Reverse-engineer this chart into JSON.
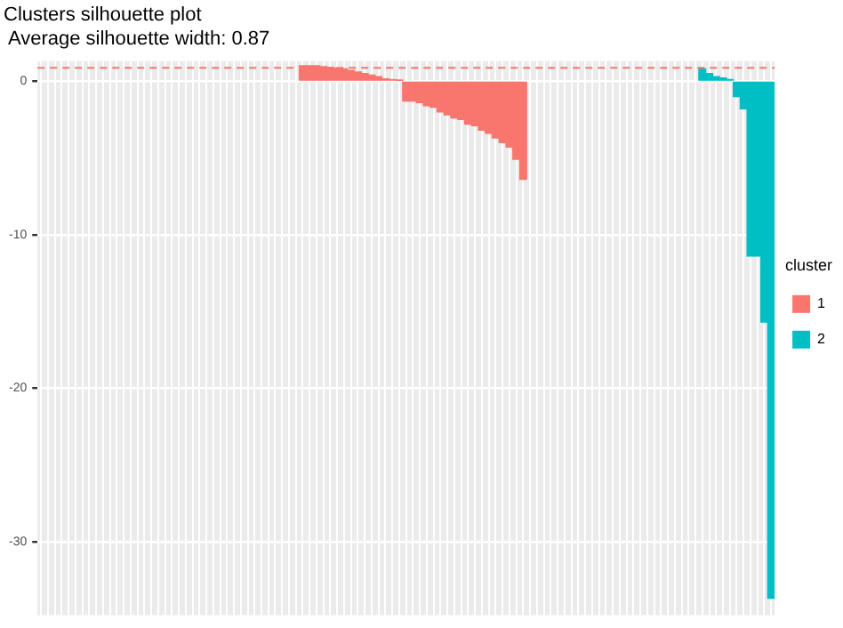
{
  "chart_data": {
    "type": "bar",
    "title": "Clusters silhouette plot",
    "subtitle": " Average silhouette width: 0.87",
    "legend_title": "cluster",
    "categories": [
      null,
      null,
      null,
      null,
      null,
      null,
      null,
      null,
      null,
      null,
      null,
      null,
      null,
      null,
      null,
      null,
      null,
      null,
      null,
      null,
      null,
      null,
      null,
      null,
      null,
      null,
      null,
      null,
      null,
      null,
      null,
      null,
      null,
      null,
      null,
      null,
      null,
      null,
      null,
      null,
      null,
      null,
      null,
      null,
      null,
      null,
      null,
      null,
      null,
      null,
      null,
      null,
      null,
      null,
      null,
      null,
      null,
      null,
      null,
      null,
      null,
      null,
      null,
      null,
      null,
      null,
      null,
      null,
      null,
      null,
      null,
      null,
      null,
      null,
      null,
      null,
      null,
      null,
      null,
      null,
      null,
      null,
      null,
      null,
      null,
      null,
      null,
      null,
      null,
      null,
      null,
      null,
      null,
      null,
      null,
      null,
      null,
      null,
      null,
      null,
      null,
      null,
      null,
      null,
      null,
      null,
      null
    ],
    "series": [
      {
        "name": "1",
        "color": "#f8766d",
        "values": [
          null,
          null,
          null,
          null,
          null,
          null,
          null,
          null,
          null,
          null,
          null,
          null,
          null,
          null,
          null,
          null,
          null,
          null,
          null,
          null,
          null,
          null,
          null,
          null,
          null,
          null,
          null,
          null,
          null,
          null,
          null,
          null,
          null,
          null,
          null,
          null,
          null,
          null,
          1.0,
          1.0,
          1.0,
          0.95,
          0.9,
          0.85,
          0.8,
          0.7,
          0.6,
          0.5,
          0.4,
          0.3,
          0.15,
          0.1,
          0.05,
          -1.3,
          -1.3,
          -1.4,
          -1.6,
          -1.7,
          -2.0,
          -2.2,
          -2.4,
          -2.5,
          -2.8,
          -2.9,
          -3.2,
          -3.4,
          -3.7,
          -4.0,
          -4.3,
          -5.1,
          -6.4,
          null,
          null,
          null,
          null,
          null,
          null,
          null,
          null,
          null,
          null,
          null,
          null,
          null,
          null,
          null,
          null,
          null,
          null,
          null,
          null,
          null,
          null,
          null,
          null,
          null,
          null,
          null,
          null,
          null,
          null,
          null,
          null,
          null,
          null,
          null,
          null
        ]
      },
      {
        "name": "2",
        "color": "#00bfc4",
        "values": [
          null,
          null,
          null,
          null,
          null,
          null,
          null,
          null,
          null,
          null,
          null,
          null,
          null,
          null,
          null,
          null,
          null,
          null,
          null,
          null,
          null,
          null,
          null,
          null,
          null,
          null,
          null,
          null,
          null,
          null,
          null,
          null,
          null,
          null,
          null,
          null,
          null,
          null,
          null,
          null,
          null,
          null,
          null,
          null,
          null,
          null,
          null,
          null,
          null,
          null,
          null,
          null,
          null,
          null,
          null,
          null,
          null,
          null,
          null,
          null,
          null,
          null,
          null,
          null,
          null,
          null,
          null,
          null,
          null,
          null,
          null,
          null,
          null,
          null,
          null,
          null,
          null,
          null,
          null,
          null,
          null,
          null,
          null,
          null,
          null,
          null,
          null,
          null,
          null,
          null,
          null,
          null,
          null,
          null,
          null,
          null,
          0.8,
          0.5,
          0.3,
          0.2,
          0.1,
          -1.0,
          -1.8,
          -11.4,
          -11.4,
          -15.7,
          -33.7
        ]
      }
    ],
    "ylim": [
      -34.8,
      1.3
    ],
    "yticks": [
      0,
      -10,
      -20,
      -30
    ],
    "grid": true,
    "legend": "right",
    "tick_labels": "y",
    "ref_lines": [
      {
        "axis": "y",
        "value": 0.87,
        "color": "#f8766d",
        "line_style": "dashed"
      }
    ]
  }
}
